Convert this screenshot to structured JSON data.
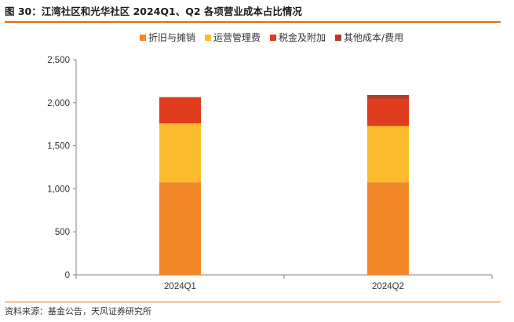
{
  "header": {
    "figure_title": "图 30：江湾社区和光华社区 2024Q1、Q2 各项营业成本占比情况"
  },
  "footer": {
    "source": "资料来源：基金公告，天风证券研究所"
  },
  "colors": {
    "accent_rule": "#e46c0a",
    "axis": "#808080"
  },
  "chart_data": {
    "type": "bar",
    "stacked": true,
    "title": "",
    "xlabel": "",
    "ylabel": "",
    "categories": [
      "2024Q1",
      "2024Q2"
    ],
    "ylim": [
      0,
      2500
    ],
    "yticks": [
      0,
      500,
      1000,
      1500,
      2000,
      2500
    ],
    "ytick_labels": [
      "0",
      "500",
      "1,000",
      "1,500",
      "2,000",
      "2,500"
    ],
    "grid": false,
    "legend_position": "top",
    "series": [
      {
        "name": "折旧与摊销",
        "color": "#f18729",
        "values": [
          1075,
          1075
        ]
      },
      {
        "name": "运营管理费",
        "color": "#fbbd2b",
        "values": [
          685,
          655
        ]
      },
      {
        "name": "税金及附加",
        "color": "#e03c1e",
        "values": [
          305,
          310
        ]
      },
      {
        "name": "其他成本/费用",
        "color": "#b23a2a",
        "values": [
          0,
          50
        ]
      }
    ]
  }
}
